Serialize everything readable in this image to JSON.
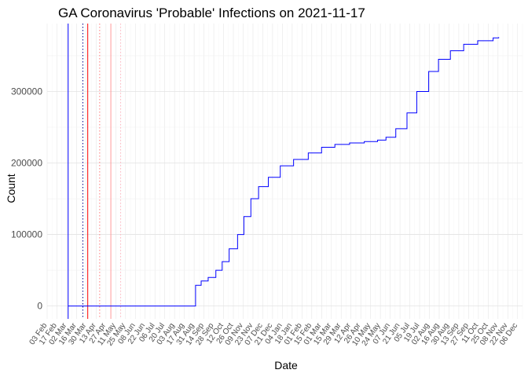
{
  "chart_data": {
    "type": "line",
    "title": "GA Coronavirus 'Probable' Infections on 2021-11-17",
    "xlabel": "Date",
    "ylabel": "Count",
    "xlim": [
      "2020-02-03",
      "2021-12-13"
    ],
    "ylim": [
      -18000,
      395000
    ],
    "grid": true,
    "legend": "none",
    "y_ticks": [
      0,
      100000,
      200000,
      300000
    ],
    "x_tick_labels": [
      {
        "date": "2020-02-03",
        "label": "03 Feb"
      },
      {
        "date": "2020-02-17",
        "label": "17 Feb"
      },
      {
        "date": "2020-03-02",
        "label": "02 Mar"
      },
      {
        "date": "2020-03-16",
        "label": "16 Mar"
      },
      {
        "date": "2020-03-30",
        "label": "30 Mar"
      },
      {
        "date": "2020-04-13",
        "label": "13 Apr"
      },
      {
        "date": "2020-04-27",
        "label": "27 Apr"
      },
      {
        "date": "2020-05-11",
        "label": "11 May"
      },
      {
        "date": "2020-05-25",
        "label": "25 May"
      },
      {
        "date": "2020-06-08",
        "label": "08 Jun"
      },
      {
        "date": "2020-06-22",
        "label": "22 Jun"
      },
      {
        "date": "2020-07-06",
        "label": "06 Jul"
      },
      {
        "date": "2020-07-20",
        "label": "20 Jul"
      },
      {
        "date": "2020-08-03",
        "label": "03 Aug"
      },
      {
        "date": "2020-08-17",
        "label": "17 Aug"
      },
      {
        "date": "2020-08-31",
        "label": "31 Aug"
      },
      {
        "date": "2020-09-14",
        "label": "14 Sep"
      },
      {
        "date": "2020-09-28",
        "label": "28 Sep"
      },
      {
        "date": "2020-10-12",
        "label": "12 Oct"
      },
      {
        "date": "2020-10-26",
        "label": "26 Oct"
      },
      {
        "date": "2020-11-09",
        "label": "09 Nov"
      },
      {
        "date": "2020-11-23",
        "label": "23 Nov"
      },
      {
        "date": "2020-12-07",
        "label": "07 Dec"
      },
      {
        "date": "2020-12-21",
        "label": "21 Dec"
      },
      {
        "date": "2021-01-04",
        "label": "04 Jan"
      },
      {
        "date": "2021-01-18",
        "label": "18 Jan"
      },
      {
        "date": "2021-02-01",
        "label": "01 Feb"
      },
      {
        "date": "2021-02-15",
        "label": "15 Feb"
      },
      {
        "date": "2021-03-01",
        "label": "01 Mar"
      },
      {
        "date": "2021-03-15",
        "label": "15 Mar"
      },
      {
        "date": "2021-03-29",
        "label": "29 Mar"
      },
      {
        "date": "2021-04-12",
        "label": "12 Apr"
      },
      {
        "date": "2021-04-26",
        "label": "26 Apr"
      },
      {
        "date": "2021-05-10",
        "label": "10 May"
      },
      {
        "date": "2021-05-24",
        "label": "24 May"
      },
      {
        "date": "2021-06-07",
        "label": "07 Jun"
      },
      {
        "date": "2021-06-21",
        "label": "21 Jun"
      },
      {
        "date": "2021-07-05",
        "label": "05 Jul"
      },
      {
        "date": "2021-07-19",
        "label": "19 Jul"
      },
      {
        "date": "2021-08-02",
        "label": "02 Aug"
      },
      {
        "date": "2021-08-16",
        "label": "16 Aug"
      },
      {
        "date": "2021-08-30",
        "label": "30 Aug"
      },
      {
        "date": "2021-09-13",
        "label": "13 Sep"
      },
      {
        "date": "2021-09-27",
        "label": "27 Sep"
      },
      {
        "date": "2021-10-11",
        "label": "11 Oct"
      },
      {
        "date": "2021-10-25",
        "label": "25 Oct"
      },
      {
        "date": "2021-11-08",
        "label": "08 Nov"
      },
      {
        "date": "2021-11-22",
        "label": "22 Nov"
      },
      {
        "date": "2021-12-06",
        "label": "06 Dec"
      }
    ],
    "series": [
      {
        "color": "#0000ff",
        "points": [
          {
            "x": "2020-03-04",
            "y": 0
          },
          {
            "x": "2020-09-01",
            "y": 0
          },
          {
            "x": "2020-09-02",
            "y": 29000
          },
          {
            "x": "2020-09-10",
            "y": 35000
          },
          {
            "x": "2020-09-20",
            "y": 40000
          },
          {
            "x": "2020-10-01",
            "y": 50000
          },
          {
            "x": "2020-10-10",
            "y": 62000
          },
          {
            "x": "2020-10-20",
            "y": 80000
          },
          {
            "x": "2020-11-01",
            "y": 100000
          },
          {
            "x": "2020-11-10",
            "y": 125000
          },
          {
            "x": "2020-11-20",
            "y": 150000
          },
          {
            "x": "2020-12-01",
            "y": 167000
          },
          {
            "x": "2020-12-15",
            "y": 180000
          },
          {
            "x": "2021-01-01",
            "y": 196000
          },
          {
            "x": "2021-01-20",
            "y": 205000
          },
          {
            "x": "2021-02-10",
            "y": 214000
          },
          {
            "x": "2021-03-01",
            "y": 222000
          },
          {
            "x": "2021-03-20",
            "y": 226000
          },
          {
            "x": "2021-04-10",
            "y": 228000
          },
          {
            "x": "2021-05-01",
            "y": 230000
          },
          {
            "x": "2021-05-20",
            "y": 232000
          },
          {
            "x": "2021-06-01",
            "y": 236000
          },
          {
            "x": "2021-06-15",
            "y": 248000
          },
          {
            "x": "2021-07-01",
            "y": 270000
          },
          {
            "x": "2021-07-15",
            "y": 300000
          },
          {
            "x": "2021-08-01",
            "y": 328000
          },
          {
            "x": "2021-08-15",
            "y": 345000
          },
          {
            "x": "2021-09-01",
            "y": 357000
          },
          {
            "x": "2021-09-20",
            "y": 366000
          },
          {
            "x": "2021-10-10",
            "y": 371000
          },
          {
            "x": "2021-11-01",
            "y": 375000
          },
          {
            "x": "2021-11-09",
            "y": 376000
          }
        ]
      }
    ],
    "reference_lines": [
      {
        "x": "2020-03-04",
        "color": "#0000ff",
        "style": "solid"
      },
      {
        "x": "2020-03-25",
        "color": "#00008b",
        "style": "dotted"
      },
      {
        "x": "2020-04-01",
        "color": "#ff0000",
        "style": "solid"
      },
      {
        "x": "2020-04-18",
        "color": "#ff7f7f",
        "style": "dotted"
      },
      {
        "x": "2020-05-04",
        "color": "#ff9999",
        "style": "solid"
      },
      {
        "x": "2020-05-18",
        "color": "#ffb6c1",
        "style": "dotted"
      }
    ]
  }
}
